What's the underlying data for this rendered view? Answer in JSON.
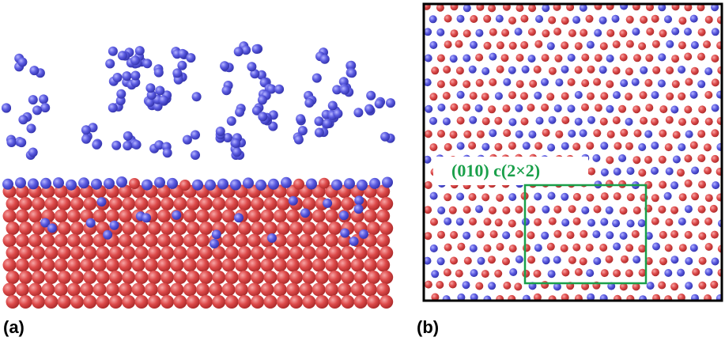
{
  "panels": [
    {
      "label": "(a)"
    },
    {
      "label": "(b)",
      "annotation": "(010) c(2×2)"
    }
  ]
}
